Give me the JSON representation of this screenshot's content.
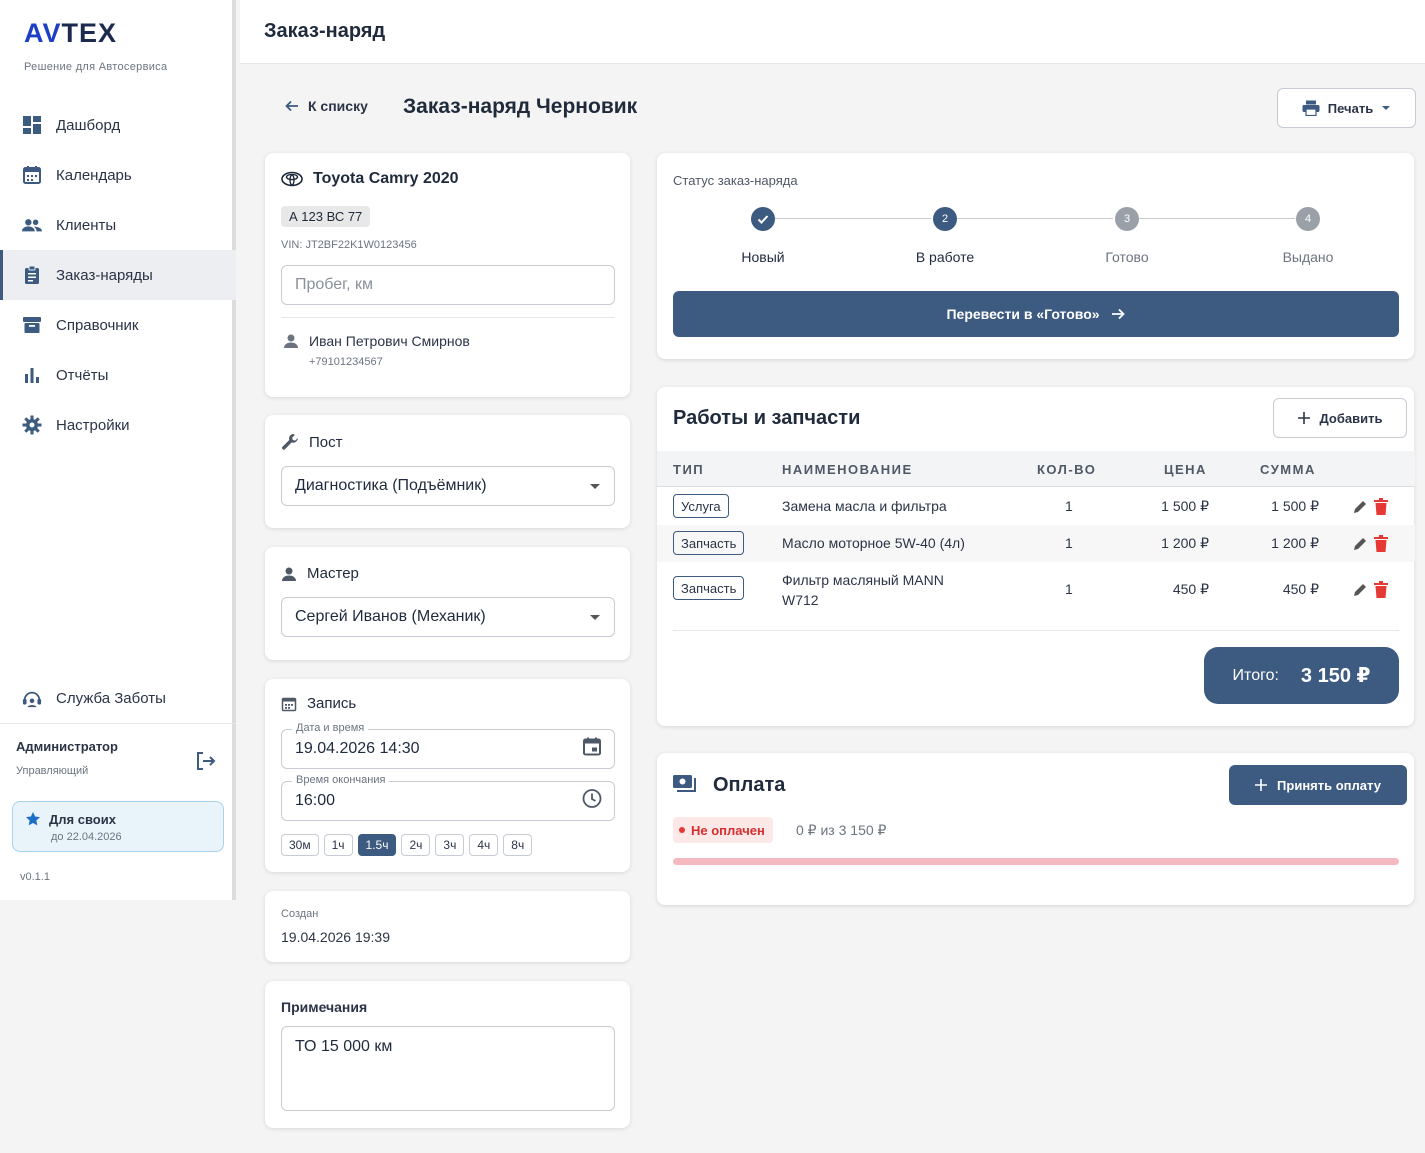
{
  "brand": {
    "logo_av": "AV",
    "logo_rest": "TEX",
    "tagline": "Решение для Автосервиса"
  },
  "sidebar": {
    "items": [
      {
        "label": "Дашборд",
        "icon": "dashboard-icon"
      },
      {
        "label": "Календарь",
        "icon": "calendar-icon"
      },
      {
        "label": "Клиенты",
        "icon": "people-icon"
      },
      {
        "label": "Заказ-наряды",
        "icon": "clipboard-icon",
        "active": true
      },
      {
        "label": "Справочник",
        "icon": "archive-icon"
      },
      {
        "label": "Отчёты",
        "icon": "bar-chart-icon"
      },
      {
        "label": "Настройки",
        "icon": "gear-icon"
      }
    ],
    "care_label": "Служба Заботы",
    "admin_name": "Администратор",
    "admin_role": "Управляющий",
    "plan_title": "Для своих",
    "plan_date": "до 22.04.2026",
    "version": "v0.1.1"
  },
  "header": {
    "title": "Заказ-наряд"
  },
  "page": {
    "back_label": "К списку",
    "title": "Заказ-наряд Черновик",
    "print_label": "Печать"
  },
  "vehicle": {
    "title": "Toyota Camry 2020",
    "plate": "А 123 ВС 77",
    "vin": "VIN: JT2BF22K1W0123456",
    "mileage_placeholder": "Пробег, км",
    "client_name": "Иван Петрович Смирнов",
    "client_phone": "+79101234567"
  },
  "post": {
    "label": "Пост",
    "value": "Диагностика (Подъёмник)"
  },
  "master": {
    "label": "Мастер",
    "value": "Сергей Иванов (Механик)"
  },
  "booking": {
    "label": "Запись",
    "datetime_label": "Дата и время",
    "datetime_value": "19.04.2026 14:30",
    "end_label": "Время окончания",
    "end_value": "16:00",
    "durations": [
      "30м",
      "1ч",
      "1.5ч",
      "2ч",
      "3ч",
      "4ч",
      "8ч"
    ],
    "active_duration": "1.5ч"
  },
  "created": {
    "label": "Создан",
    "value": "19.04.2026 19:39"
  },
  "notes": {
    "label": "Примечания",
    "value": "ТО 15 000 км"
  },
  "status": {
    "label": "Статус заказ-наряда",
    "steps": [
      {
        "num": "✓",
        "name": "Новый",
        "state": "done"
      },
      {
        "num": "2",
        "name": "В работе",
        "state": "cur"
      },
      {
        "num": "3",
        "name": "Готово",
        "state": "todo"
      },
      {
        "num": "4",
        "name": "Выдано",
        "state": "todo"
      }
    ],
    "advance_label": "Перевести в «Готово»"
  },
  "works": {
    "title": "Работы и запчасти",
    "add_label": "Добавить",
    "columns": {
      "type": "ТИП",
      "name": "НАИМЕНОВАНИЕ",
      "qty": "КОЛ-ВО",
      "price": "ЦЕНА",
      "sum": "СУММА"
    },
    "rows": [
      {
        "type": "Услуга",
        "name": "Замена масла и фильтра",
        "qty": "1",
        "price": "1 500 ₽",
        "sum": "1 500 ₽"
      },
      {
        "type": "Запчасть",
        "name": "Масло моторное 5W-40 (4л)",
        "qty": "1",
        "price": "1 200 ₽",
        "sum": "1 200 ₽"
      },
      {
        "type": "Запчасть",
        "name": "Фильтр масляный MANN W712",
        "qty": "1",
        "price": "450 ₽",
        "sum": "450 ₽"
      }
    ],
    "total_label": "Итого:",
    "total_value": "3 150 ₽"
  },
  "payment": {
    "title": "Оплата",
    "button_label": "Принять оплату",
    "status_label": "Не оплачен",
    "summary": "0 ₽ из 3 150 ₽",
    "paid_fraction": 0
  },
  "colors": {
    "accent": "#3d5a80",
    "danger": "#e53935",
    "bar_bg": "#f4b9bf"
  }
}
